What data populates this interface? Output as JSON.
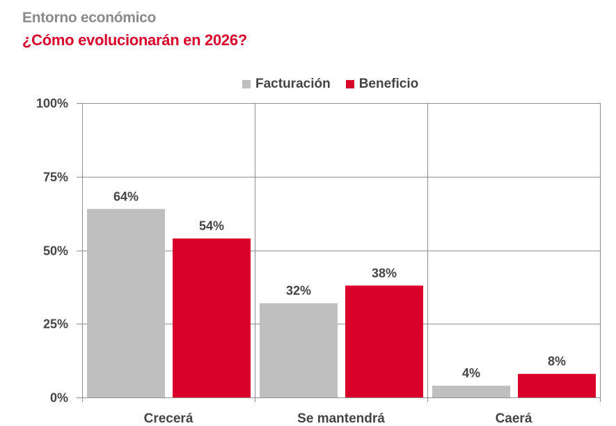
{
  "header": {
    "kicker": "Entorno económico",
    "title": "¿Cómo evolucionarán en 2026?"
  },
  "colors": {
    "facturacion": "#bfbfbf",
    "beneficio": "#d9002a",
    "grid": "#8f8f8f",
    "text": "#444444"
  },
  "chart_data": {
    "type": "bar",
    "title": "¿Cómo evolucionarán en 2026?",
    "xlabel": "",
    "ylabel": "",
    "categories": [
      "Crecerá",
      "Se mantendrá",
      "Caerá"
    ],
    "series": [
      {
        "name": "Facturación",
        "values": [
          64,
          32,
          4
        ],
        "labels": [
          "64%",
          "32%",
          "4%"
        ]
      },
      {
        "name": "Beneficio",
        "values": [
          54,
          38,
          8
        ],
        "labels": [
          "54%",
          "38%",
          "8%"
        ]
      }
    ],
    "ylim": [
      0,
      100
    ],
    "yticks": [
      0,
      25,
      50,
      75,
      100
    ],
    "ytick_labels": [
      "0%",
      "25%",
      "50%",
      "75%",
      "100%"
    ],
    "grid": true,
    "legend": "top-center"
  }
}
